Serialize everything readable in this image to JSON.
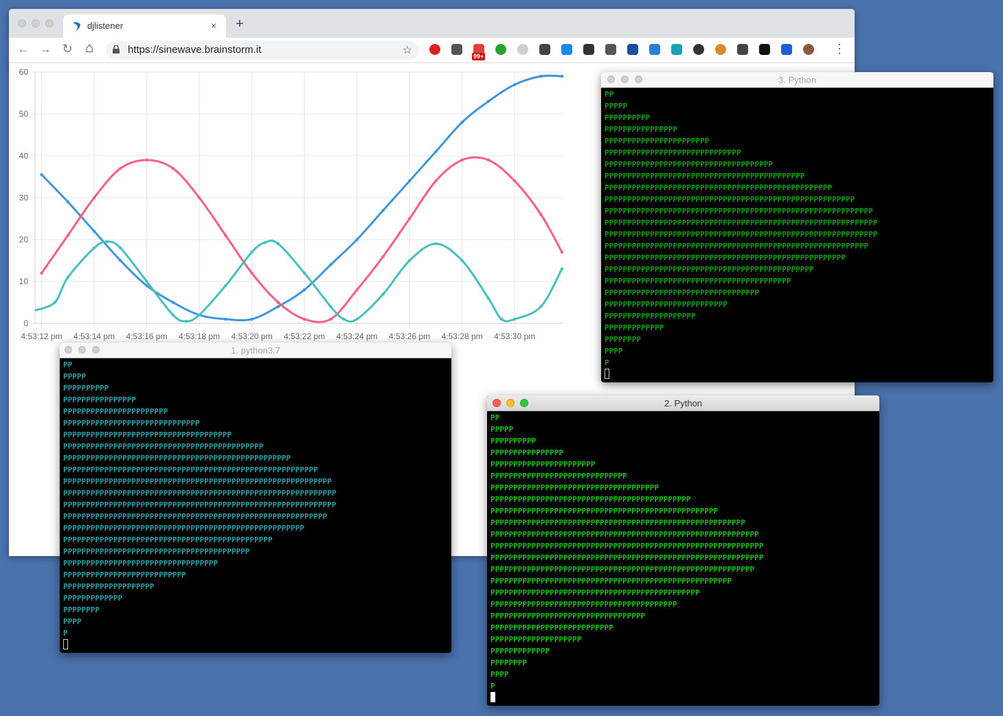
{
  "browser": {
    "tab_title": "djlistener",
    "tab_close": "×",
    "new_tab": "+",
    "url": "https://sinewave.brainstorm.it",
    "badge": "99+",
    "nav": {
      "back": "←",
      "forward": "→",
      "reload": "↻",
      "home": "⌂",
      "star": "☆",
      "menu": "⋮"
    },
    "extensions": [
      "ublock-icon",
      "eyedropper-icon",
      "badge-ext-icon",
      "ext-green-icon",
      "ext-gray-icon",
      "eye-icon",
      "ext-refresh-icon",
      "ext-sync-icon",
      "ext-ghost-icon",
      "bookmark-icon",
      "globe-icon",
      "bird-icon",
      "info-icon",
      "cookie-icon",
      "recycle-icon",
      "eye-dark-icon",
      "grid-icon",
      "avatar"
    ]
  },
  "chart_data": {
    "type": "line",
    "y_ticks": [
      "0",
      "10",
      "20",
      "30",
      "40",
      "50",
      "60"
    ],
    "ylim": [
      0,
      60
    ],
    "x_tick_labels": [
      "4:53:12 pm",
      "4:53:14 pm",
      "4:53:16 pm",
      "4:53:18 pm",
      "4:53:20 pm",
      "4:53:22 pm",
      "4:53:24 pm",
      "4:53:26 pm",
      "4:53:28 pm",
      "4:53:30 pm"
    ],
    "x_range": [
      -0.25,
      19.8
    ],
    "grid": true,
    "series": [
      {
        "color": "#3e95d9",
        "values": [
          [
            0,
            35.5
          ],
          [
            1,
            29
          ],
          [
            2,
            22
          ],
          [
            3,
            15
          ],
          [
            4,
            9
          ],
          [
            5,
            5
          ],
          [
            6,
            2
          ],
          [
            7,
            1
          ],
          [
            8,
            1
          ],
          [
            9,
            4
          ],
          [
            10,
            8
          ],
          [
            11,
            14
          ],
          [
            12,
            20
          ],
          [
            13,
            27
          ],
          [
            14,
            34
          ],
          [
            15,
            41
          ],
          [
            16,
            48
          ],
          [
            17,
            53
          ],
          [
            18,
            57
          ],
          [
            19,
            59
          ],
          [
            19.8,
            59
          ]
        ]
      },
      {
        "color": "#ff5d84",
        "values": [
          [
            0,
            12
          ],
          [
            1,
            21
          ],
          [
            2,
            30
          ],
          [
            3,
            37
          ],
          [
            4,
            39
          ],
          [
            5,
            37
          ],
          [
            6,
            30
          ],
          [
            7,
            21
          ],
          [
            8,
            12
          ],
          [
            9,
            5
          ],
          [
            10,
            1
          ],
          [
            11,
            1
          ],
          [
            12,
            8
          ],
          [
            13,
            16
          ],
          [
            14,
            25
          ],
          [
            15,
            34
          ],
          [
            16,
            39
          ],
          [
            17,
            39
          ],
          [
            18,
            34
          ],
          [
            19,
            26
          ],
          [
            19.8,
            17
          ]
        ]
      },
      {
        "color": "#46bfbd",
        "values": [
          [
            -0.3,
            3
          ],
          [
            0.5,
            5
          ],
          [
            1,
            11
          ],
          [
            2,
            18
          ],
          [
            2.5,
            19.5
          ],
          [
            3,
            18
          ],
          [
            4,
            10
          ],
          [
            5,
            2
          ],
          [
            5.5,
            0.5
          ],
          [
            6,
            2
          ],
          [
            7,
            9
          ],
          [
            8,
            17
          ],
          [
            8.5,
            19.3
          ],
          [
            9,
            19
          ],
          [
            10,
            12
          ],
          [
            11,
            4
          ],
          [
            11.5,
            1
          ],
          [
            12,
            1
          ],
          [
            13,
            7
          ],
          [
            14,
            15
          ],
          [
            15,
            19
          ],
          [
            16,
            15
          ],
          [
            17,
            6
          ],
          [
            17.5,
            1
          ],
          [
            18,
            1
          ],
          [
            19,
            4
          ],
          [
            19.8,
            13
          ]
        ]
      }
    ]
  },
  "terminals": {
    "t1": {
      "title": "1. python3.7",
      "color": "#2aa0a8",
      "lines": [
        "PP",
        "PPPPP",
        "PPPPPPPPPP",
        "PPPPPPPPPPPPPPPP",
        "PPPPPPPPPPPPPPPPPPPPPPP",
        "PPPPPPPPPPPPPPPPPPPPPPPPPPPPPP",
        "PPPPPPPPPPPPPPPPPPPPPPPPPPPPPPPPPPPPP",
        "PPPPPPPPPPPPPPPPPPPPPPPPPPPPPPPPPPPPPPPPPPPP",
        "PPPPPPPPPPPPPPPPPPPPPPPPPPPPPPPPPPPPPPPPPPPPPPPPPP",
        "PPPPPPPPPPPPPPPPPPPPPPPPPPPPPPPPPPPPPPPPPPPPPPPPPPPPPPPP",
        "PPPPPPPPPPPPPPPPPPPPPPPPPPPPPPPPPPPPPPPPPPPPPPPPPPPPPPPPPPP",
        "PPPPPPPPPPPPPPPPPPPPPPPPPPPPPPPPPPPPPPPPPPPPPPPPPPPPPPPPPPPP",
        "PPPPPPPPPPPPPPPPPPPPPPPPPPPPPPPPPPPPPPPPPPPPPPPPPPPPPPPPPPPP",
        "PPPPPPPPPPPPPPPPPPPPPPPPPPPPPPPPPPPPPPPPPPPPPPPPPPPPPPPPPP",
        "PPPPPPPPPPPPPPPPPPPPPPPPPPPPPPPPPPPPPPPPPPPPPPPPPPPPP",
        "PPPPPPPPPPPPPPPPPPPPPPPPPPPPPPPPPPPPPPPPPPPPPP",
        "PPPPPPPPPPPPPPPPPPPPPPPPPPPPPPPPPPPPPPPPP",
        "PPPPPPPPPPPPPPPPPPPPPPPPPPPPPPPPPP",
        "PPPPPPPPPPPPPPPPPPPPPPPPPPP",
        "PPPPPPPPPPPPPPPPPPPP",
        "PPPPPPPPPPPPP",
        "PPPPPPPP",
        "PPPP",
        "P"
      ]
    },
    "t2": {
      "title": "2. Python",
      "color": "#16c316",
      "lines": [
        "PP",
        "PPPPP",
        "PPPPPPPPPP",
        "PPPPPPPPPPPPPPPP",
        "PPPPPPPPPPPPPPPPPPPPPPP",
        "PPPPPPPPPPPPPPPPPPPPPPPPPPPPPP",
        "PPPPPPPPPPPPPPPPPPPPPPPPPPPPPPPPPPPPP",
        "PPPPPPPPPPPPPPPPPPPPPPPPPPPPPPPPPPPPPPPPPPPP",
        "PPPPPPPPPPPPPPPPPPPPPPPPPPPPPPPPPPPPPPPPPPPPPPPPPP",
        "PPPPPPPPPPPPPPPPPPPPPPPPPPPPPPPPPPPPPPPPPPPPPPPPPPPPPPPP",
        "PPPPPPPPPPPPPPPPPPPPPPPPPPPPPPPPPPPPPPPPPPPPPPPPPPPPPPPPPPP",
        "PPPPPPPPPPPPPPPPPPPPPPPPPPPPPPPPPPPPPPPPPPPPPPPPPPPPPPPPPPPP",
        "PPPPPPPPPPPPPPPPPPPPPPPPPPPPPPPPPPPPPPPPPPPPPPPPPPPPPPPPPPPP",
        "PPPPPPPPPPPPPPPPPPPPPPPPPPPPPPPPPPPPPPPPPPPPPPPPPPPPPPPPPP",
        "PPPPPPPPPPPPPPPPPPPPPPPPPPPPPPPPPPPPPPPPPPPPPPPPPPPPP",
        "PPPPPPPPPPPPPPPPPPPPPPPPPPPPPPPPPPPPPPPPPPPPPP",
        "PPPPPPPPPPPPPPPPPPPPPPPPPPPPPPPPPPPPPPPPP",
        "PPPPPPPPPPPPPPPPPPPPPPPPPPPPPPPPPP",
        "PPPPPPPPPPPPPPPPPPPPPPPPPPP",
        "PPPPPPPPPPPPPPPPPPPP",
        "PPPPPPPPPPPPP",
        "PPPPPPPP",
        "PPPP",
        "P"
      ]
    },
    "t3": {
      "title": "3. Python",
      "color": "#0fa012",
      "lines": [
        "PP",
        "PPPPP",
        "PPPPPPPPPP",
        "PPPPPPPPPPPPPPPP",
        "PPPPPPPPPPPPPPPPPPPPPPP",
        "PPPPPPPPPPPPPPPPPPPPPPPPPPPPPP",
        "PPPPPPPPPPPPPPPPPPPPPPPPPPPPPPPPPPPPP",
        "PPPPPPPPPPPPPPPPPPPPPPPPPPPPPPPPPPPPPPPPPPPP",
        "PPPPPPPPPPPPPPPPPPPPPPPPPPPPPPPPPPPPPPPPPPPPPPPPPP",
        "PPPPPPPPPPPPPPPPPPPPPPPPPPPPPPPPPPPPPPPPPPPPPPPPPPPPPPP",
        "PPPPPPPPPPPPPPPPPPPPPPPPPPPPPPPPPPPPPPPPPPPPPPPPPPPPPPPPPPP",
        "PPPPPPPPPPPPPPPPPPPPPPPPPPPPPPPPPPPPPPPPPPPPPPPPPPPPPPPPPPPP",
        "PPPPPPPPPPPPPPPPPPPPPPPPPPPPPPPPPPPPPPPPPPPPPPPPPPPPPPPPPPPP",
        "PPPPPPPPPPPPPPPPPPPPPPPPPPPPPPPPPPPPPPPPPPPPPPPPPPPPPPPPPP",
        "PPPPPPPPPPPPPPPPPPPPPPPPPPPPPPPPPPPPPPPPPPPPPPPPPPPPP",
        "PPPPPPPPPPPPPPPPPPPPPPPPPPPPPPPPPPPPPPPPPPPPPP",
        "PPPPPPPPPPPPPPPPPPPPPPPPPPPPPPPPPPPPPPPPP",
        "PPPPPPPPPPPPPPPPPPPPPPPPPPPPPPPPPP",
        "PPPPPPPPPPPPPPPPPPPPPPPPPPP",
        "PPPPPPPPPPPPPPPPPPPP",
        "PPPPPPPPPPPPP",
        "PPPPPPPP",
        "PPPP",
        "P"
      ]
    }
  }
}
